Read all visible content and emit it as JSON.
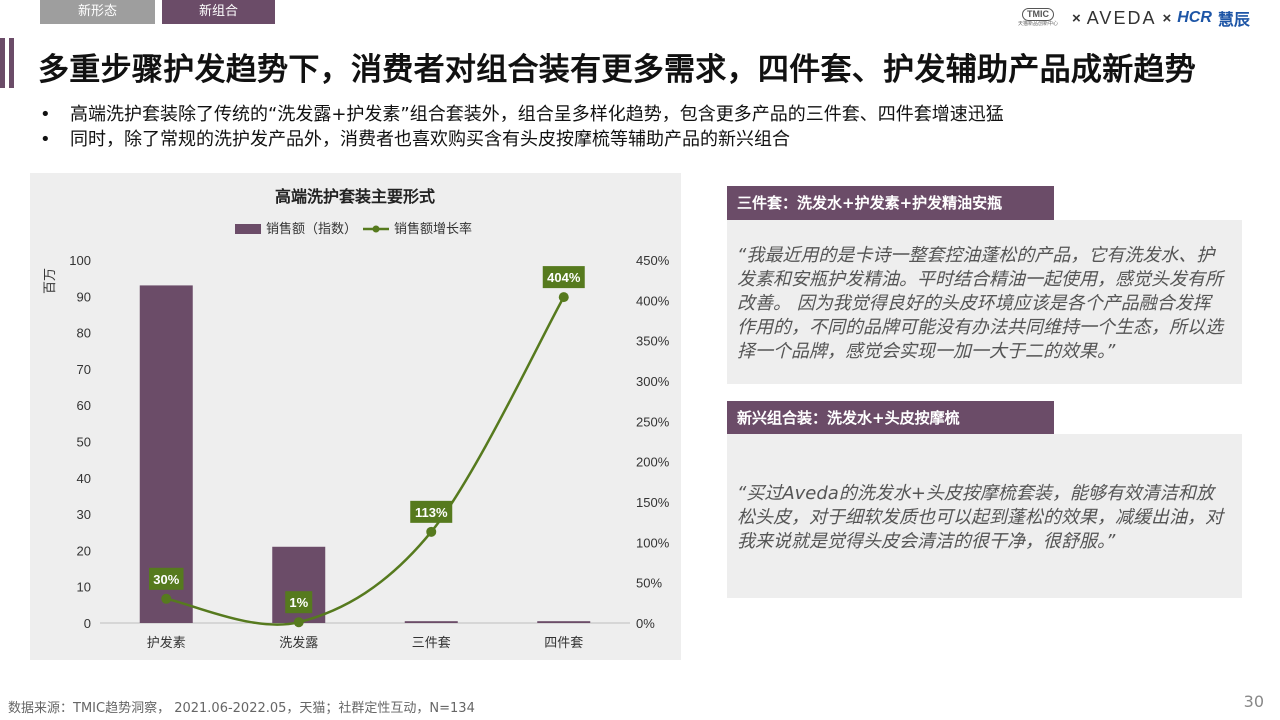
{
  "tabs": [
    {
      "label": "新形态"
    },
    {
      "label": "新组合"
    }
  ],
  "logos": {
    "tmic": "TMIC",
    "tmic_sub": "天猫新品创新中心",
    "cross": "×",
    "aveda": "AVEDA",
    "hcr": "HCR",
    "hcr_cn": "慧辰"
  },
  "title": "多重步骤护发趋势下，消费者对组合装有更多需求，四件套、护发辅助产品成新趋势",
  "bullets": [
    "高端洗护套装除了传统的“洗发露+护发素”组合套装外，组合呈多样化趋势，包含更多产品的三件套、四件套增速迅猛",
    "同时，除了常规的洗护发产品外，消费者也喜欢购买含有头皮按摩梳等辅助产品的新兴组合"
  ],
  "bullet_symbol": "•",
  "chart_data": {
    "type": "bar",
    "title": "高端洗护套装主要形式",
    "categories": [
      "护发素",
      "洗发露",
      "三件套",
      "四件套"
    ],
    "series": [
      {
        "name": "销售额（指数）",
        "type": "bar",
        "axis": "left",
        "values": [
          93,
          21,
          0.5,
          0.5
        ],
        "color": "#6b4c68"
      },
      {
        "name": "销售额增长率",
        "type": "line",
        "axis": "right",
        "values": [
          30,
          1,
          113,
          404
        ],
        "labels": [
          "30%",
          "1%",
          "113%",
          "404%"
        ],
        "color": "#567a1e"
      }
    ],
    "ylabel": "百万",
    "ylim": [
      0,
      100
    ],
    "yticks": [
      "0",
      "10",
      "20",
      "30",
      "40",
      "50",
      "60",
      "70",
      "80",
      "90",
      "100"
    ],
    "y2lim": [
      0,
      450
    ],
    "y2ticks": [
      "0%",
      "50%",
      "100%",
      "150%",
      "200%",
      "250%",
      "300%",
      "350%",
      "400%",
      "450%"
    ],
    "legend": "top-center",
    "grid": false
  },
  "quotes": [
    {
      "heading": "三件套：洗发水+护发素+护发精油安瓶",
      "text": "“我最近用的是卡诗一整套控油蓬松的产品，它有洗发水、护发素和安瓶护发精油。平时结合精油一起使用，感觉头发有所改善。 因为我觉得良好的头皮环境应该是各个产品融合发挥作用的，不同的品牌可能没有办法共同维持一个生态，所以选择一个品牌，感觉会实现一加一大于二的效果。”"
    },
    {
      "heading": "新兴组合装：洗发水+头皮按摩梳",
      "text": "“买过Aveda的洗发水+头皮按摩梳套装，能够有效清洁和放松头皮，对于细软发质也可以起到蓬松的效果，减缓出油，对我来说就是觉得头皮会清洁的很干净，很舒服。”"
    }
  ],
  "source": "数据来源：TMIC趋势洞察， 2021.06-2022.05，天猫；社群定性互动，N=134",
  "page_number": "30"
}
